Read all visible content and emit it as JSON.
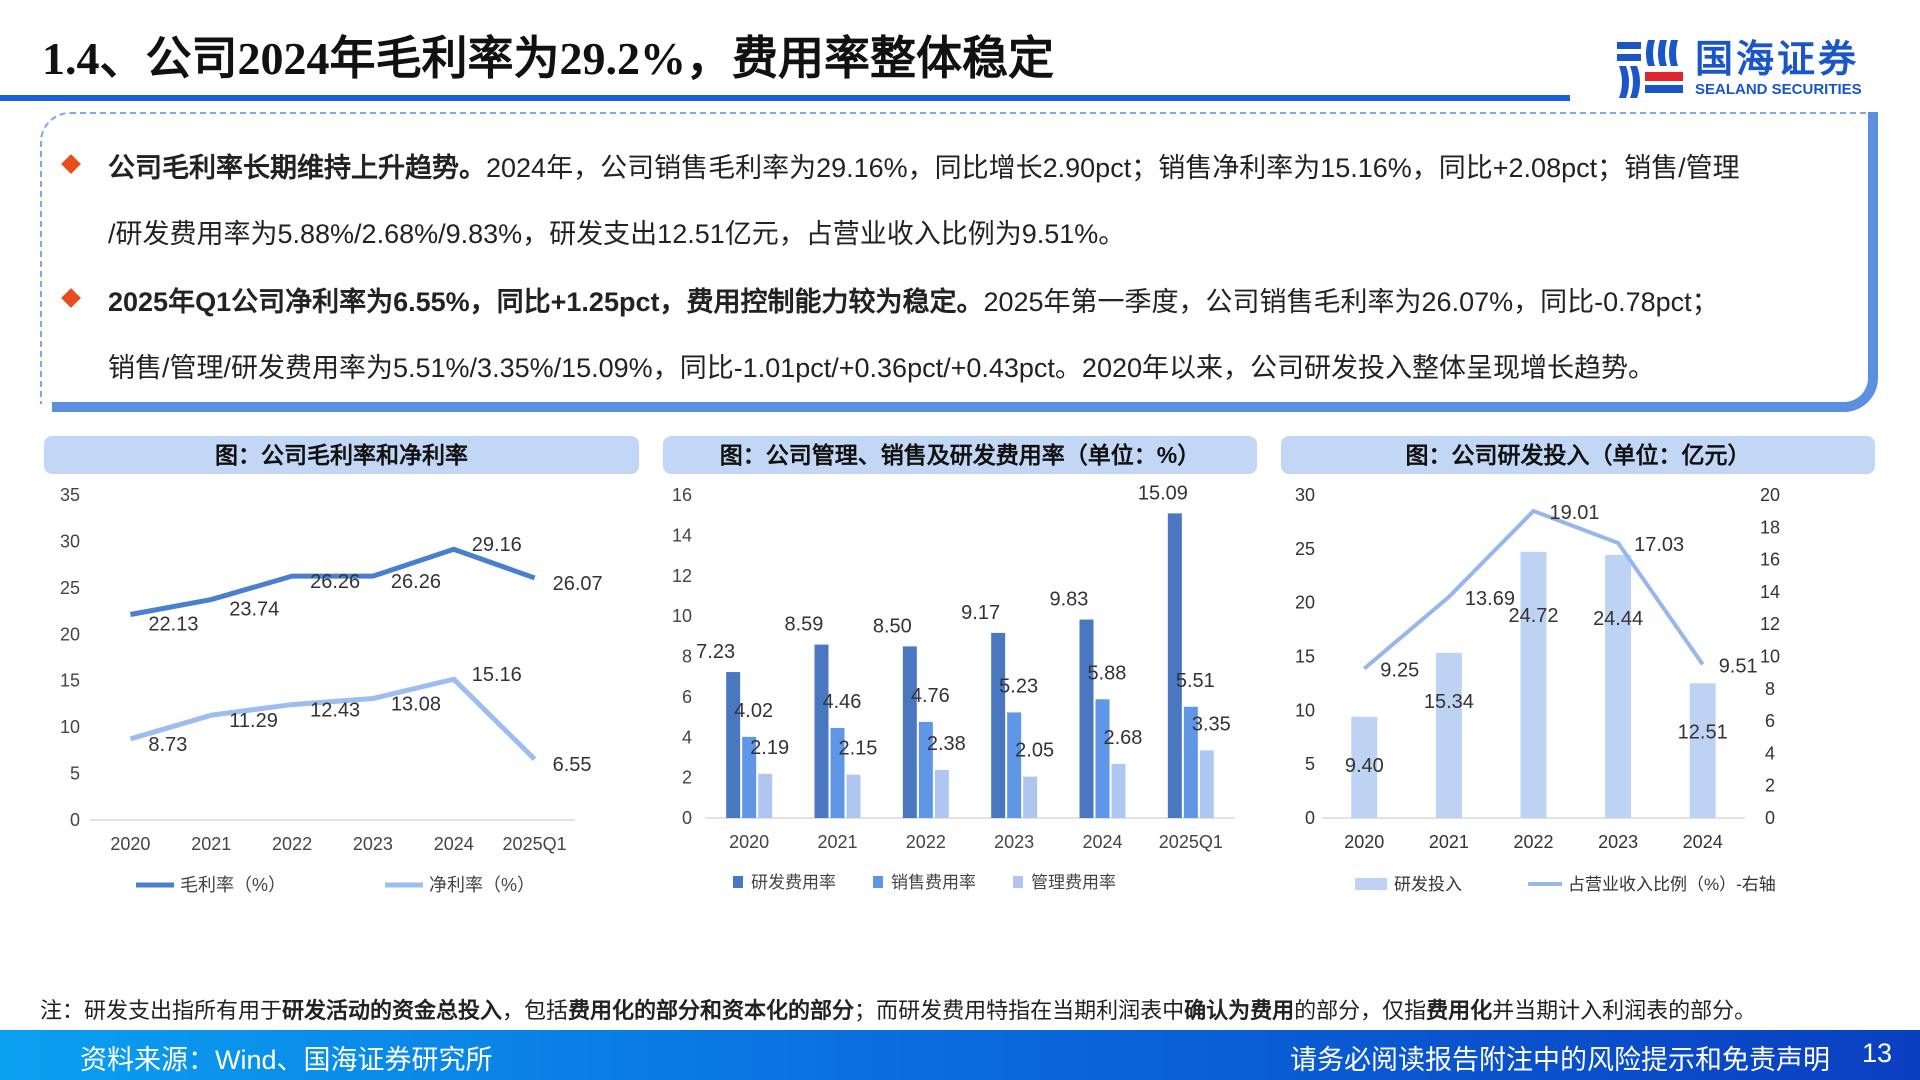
{
  "header": {
    "title": "1.4、公司2024年毛利率为29.2%，费用率整体稳定",
    "logo_cn": "国海证券",
    "logo_en": "SEALAND SECURITIES"
  },
  "summary": {
    "bullet1": {
      "bold": "公司毛利率长期维持上升趋势。",
      "text_line1": "2024年，公司销售毛利率为29.16%，同比增长2.90pct；销售净利率为15.16%，同比+2.08pct；销售/管理",
      "text_line2": "/研发费用率为5.88%/2.68%/9.83%，研发支出12.51亿元，占营业收入比例为9.51%。"
    },
    "bullet2": {
      "bold": "2025年Q1公司净利率为6.55%，同比+1.25pct，费用控制能力较为稳定。",
      "text_line1": "2025年第一季度，公司销售毛利率为26.07%，同比-0.78pct；",
      "text_line2": "销售/管理/研发费用率为5.51%/3.35%/15.09%，同比-1.01pct/+0.36pct/+0.43pct。2020年以来，公司研发投入整体呈现增长趋势。"
    },
    "accent_color": "#e84e1b"
  },
  "chart_data": [
    {
      "type": "line",
      "title": "图：公司毛利率和净利率",
      "categories": [
        "2020",
        "2021",
        "2022",
        "2023",
        "2024",
        "2025Q1"
      ],
      "series": [
        {
          "name": "毛利率（%）",
          "values": [
            22.13,
            23.74,
            26.26,
            26.26,
            29.16,
            26.07
          ],
          "color": "#4a7fd0"
        },
        {
          "name": "净利率（%）",
          "values": [
            8.73,
            11.29,
            12.43,
            13.08,
            15.16,
            6.55
          ],
          "color": "#9dbcef"
        }
      ],
      "yticks": [
        "0",
        "5",
        "10",
        "15",
        "20",
        "25",
        "30",
        "35"
      ],
      "ylim": [
        0,
        35
      ],
      "grid": false,
      "legend_position": "bottom"
    },
    {
      "type": "bar",
      "title": "图：公司管理、销售及研发费用率（单位：%）",
      "categories": [
        "2020",
        "2021",
        "2022",
        "2023",
        "2024",
        "2025Q1"
      ],
      "series": [
        {
          "name": "研发费用率",
          "values": [
            7.23,
            8.59,
            8.5,
            9.17,
            9.83,
            15.09
          ],
          "labels": [
            "7.23",
            "8.59",
            "8.50",
            "9.17",
            "9.83",
            "15.09"
          ],
          "color": "#4a78c0"
        },
        {
          "name": "销售费用率",
          "values": [
            4.02,
            4.46,
            4.76,
            5.23,
            5.88,
            5.51
          ],
          "labels": [
            "4.02",
            "4.46",
            "4.76",
            "5.23",
            "5.88",
            "5.51"
          ],
          "color": "#5f96e6"
        },
        {
          "name": "管理费用率",
          "values": [
            2.19,
            2.15,
            2.38,
            2.05,
            2.68,
            3.35
          ],
          "labels": [
            "2.19",
            "2.15",
            "2.38",
            "2.05",
            "2.68",
            "3.35"
          ],
          "color": "#aec6f0"
        }
      ],
      "yticks": [
        "0",
        "2",
        "4",
        "6",
        "8",
        "10",
        "12",
        "14",
        "16"
      ],
      "ylim": [
        0,
        16
      ],
      "grid": false,
      "legend_position": "bottom"
    },
    {
      "type": "bar",
      "title": "图：公司研发投入（单位：亿元）",
      "categories": [
        "2020",
        "2021",
        "2022",
        "2023",
        "2024"
      ],
      "series": [
        {
          "name": "研发投入",
          "values": [
            9.4,
            15.34,
            24.72,
            24.44,
            12.51
          ],
          "labels": [
            "9.40",
            "15.34",
            "24.72",
            "24.44",
            "12.51"
          ],
          "color": "#bed3f3",
          "axis": "left"
        },
        {
          "name": "占营业收入比例（%）-右轴",
          "type": "line",
          "values": [
            9.25,
            13.69,
            19.01,
            17.03,
            9.51
          ],
          "labels": [
            "9.25",
            "13.69",
            "19.01",
            "17.03",
            "9.51"
          ],
          "color": "#97b6ec",
          "axis": "right"
        }
      ],
      "yticks_left": [
        "0",
        "5",
        "10",
        "15",
        "20",
        "25",
        "30"
      ],
      "yticks_right": [
        "0",
        "2",
        "4",
        "6",
        "8",
        "10",
        "12",
        "14",
        "16",
        "18",
        "20"
      ],
      "ylim_left": [
        0,
        30
      ],
      "ylim_right": [
        0,
        20
      ],
      "grid": false,
      "legend_position": "bottom"
    }
  ],
  "note": {
    "parts": [
      {
        "t": "注：研发支出指所有用于",
        "b": false
      },
      {
        "t": "研发活动的资金总投入",
        "b": true
      },
      {
        "t": "，包括",
        "b": false
      },
      {
        "t": "费用化的部分和资本化的部分",
        "b": true
      },
      {
        "t": "；而研发费用特指在当期利润表中",
        "b": false
      },
      {
        "t": "确认为费用",
        "b": true
      },
      {
        "t": "的部分，仅指",
        "b": false
      },
      {
        "t": "费用化",
        "b": true
      },
      {
        "t": "并当期计入利润表的部分。",
        "b": false
      }
    ]
  },
  "footer": {
    "source": "资料来源：Wind、国海证券研究所",
    "disclaimer": "请务必阅读报告附注中的风险提示和免责声明",
    "page": "13"
  }
}
